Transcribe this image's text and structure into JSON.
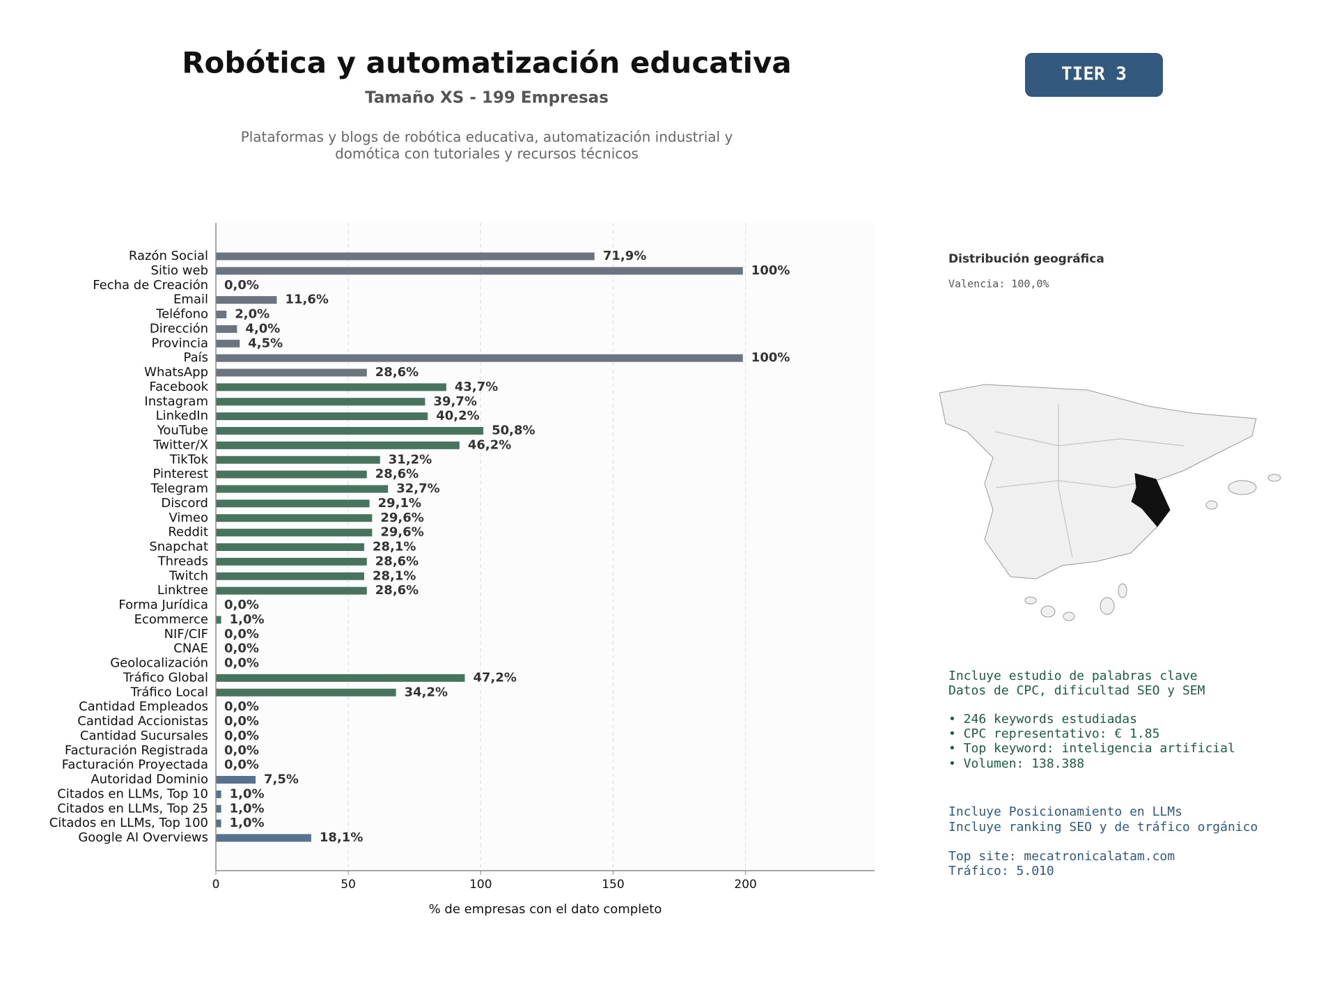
{
  "chart_data": {
    "type": "barh",
    "title": "Robótica y automatización educativa",
    "subtitle": "Tamaño XS - 199 Empresas",
    "description": [
      "Plataformas y blogs de robótica educativa, automatización industrial y",
      "domótica con tutoriales y recursos técnicos"
    ],
    "xlabel": "% de empresas con el dato completo",
    "categories": [
      "Razón Social",
      "Sitio web",
      "Fecha de Creación",
      "Email",
      "Teléfono",
      "Dirección",
      "Provincia",
      "País",
      "WhatsApp",
      "Facebook",
      "Instagram",
      "LinkedIn",
      "YouTube",
      "Twitter/X",
      "TikTok",
      "Pinterest",
      "Telegram",
      "Discord",
      "Vimeo",
      "Reddit",
      "Snapchat",
      "Threads",
      "Twitch",
      "Linktree",
      "Forma Jurídica",
      "Ecommerce",
      "NIF/CIF",
      "CNAE",
      "Geolocalización",
      "Tráfico Global",
      "Tráfico Local",
      "Cantidad Empleados",
      "Cantidad Accionistas",
      "Cantidad Sucursales",
      "Facturación Registrada",
      "Facturación Proyectada",
      "Autoridad Dominio",
      "Citados en LLMs, Top 10",
      "Citados en LLMs, Top 25",
      "Citados en LLMs, Top 100",
      "Google AI Overviews"
    ],
    "values": [
      143,
      199,
      0,
      23,
      4,
      8,
      9,
      199,
      57,
      87,
      79,
      80,
      101,
      92,
      62,
      57,
      65,
      58,
      59,
      59,
      56,
      57,
      56,
      57,
      0,
      2,
      0,
      0,
      0,
      94,
      68,
      0,
      0,
      0,
      0,
      0,
      15,
      2,
      2,
      2,
      36
    ],
    "value_labels": [
      "71,9%",
      "100%",
      "0,0%",
      "11,6%",
      "2,0%",
      "4,0%",
      "4,5%",
      "100%",
      "28,6%",
      "43,7%",
      "39,7%",
      "40,2%",
      "50,8%",
      "46,2%",
      "31,2%",
      "28,6%",
      "32,7%",
      "29,1%",
      "29,6%",
      "29,6%",
      "28,1%",
      "28,6%",
      "28,1%",
      "28,6%",
      "0,0%",
      "1,0%",
      "0,0%",
      "0,0%",
      "0,0%",
      "47,2%",
      "34,2%",
      "0,0%",
      "0,0%",
      "0,0%",
      "0,0%",
      "0,0%",
      "7,5%",
      "1,0%",
      "1,0%",
      "1,0%",
      "18,1%"
    ],
    "colors": [
      "#6c757f",
      "#6c757f",
      "#6c757f",
      "#6c757f",
      "#6c757f",
      "#6c757f",
      "#6c757f",
      "#6c757f",
      "#6c757f",
      "#48735f",
      "#48735f",
      "#48735f",
      "#48735f",
      "#48735f",
      "#48735f",
      "#48735f",
      "#48735f",
      "#48735f",
      "#48735f",
      "#48735f",
      "#48735f",
      "#48735f",
      "#48735f",
      "#48735f",
      "#48735f",
      "#48735f",
      "#48735f",
      "#48735f",
      "#48735f",
      "#48735f",
      "#48735f",
      "#48735f",
      "#48735f",
      "#48735f",
      "#48735f",
      "#48735f",
      "#56728e",
      "#56728e",
      "#56728e",
      "#56728e",
      "#56728e"
    ],
    "xlim": [
      0,
      248.75
    ],
    "xticks": [
      0,
      50,
      100,
      150,
      200
    ],
    "grid": true
  },
  "tier": "TIER 3",
  "geo": {
    "title": "Distribución geográfica",
    "label": "Valencia: 100,0%"
  },
  "seo_notes": [
    "Incluye estudio de palabras clave",
    "Datos de CPC, dificultad SEO y SEM",
    "• 246 keywords estudiadas",
    "• CPC representativo: € 1.85",
    "• Top keyword: inteligencia artificial",
    "• Volumen: 138.388"
  ],
  "llm_notes": [
    "Incluye Posicionamiento en LLMs",
    "Incluye ranking SEO y de tráfico orgánico",
    "Top site: mecatronicalatam.com",
    "Tráfico: 5.010"
  ]
}
